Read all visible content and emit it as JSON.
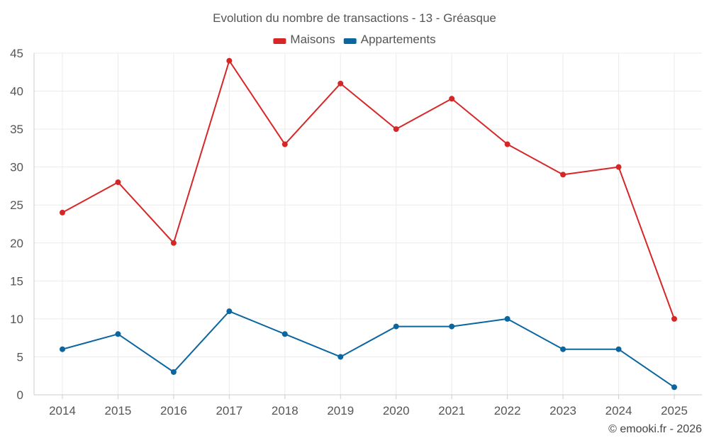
{
  "chart_data": {
    "type": "line",
    "title": "Evolution du nombre de transactions - 13 - Gréasque",
    "categories": [
      "2014",
      "2015",
      "2016",
      "2017",
      "2018",
      "2019",
      "2020",
      "2021",
      "2022",
      "2023",
      "2024",
      "2025"
    ],
    "series": [
      {
        "name": "Maisons",
        "color": "#d62728",
        "values": [
          24,
          28,
          20,
          44,
          33,
          41,
          35,
          39,
          33,
          29,
          30,
          10
        ]
      },
      {
        "name": "Appartements",
        "color": "#0b66a0",
        "values": [
          6,
          8,
          3,
          11,
          8,
          5,
          9,
          9,
          10,
          6,
          6,
          1
        ]
      }
    ],
    "ylim": [
      0,
      45
    ],
    "yticks": [
      0,
      5,
      10,
      15,
      20,
      25,
      30,
      35,
      40,
      45
    ],
    "grid": true,
    "legend_position": "top-center",
    "xlabel": "",
    "ylabel": ""
  },
  "credit": "© emooki.fr - 2026"
}
